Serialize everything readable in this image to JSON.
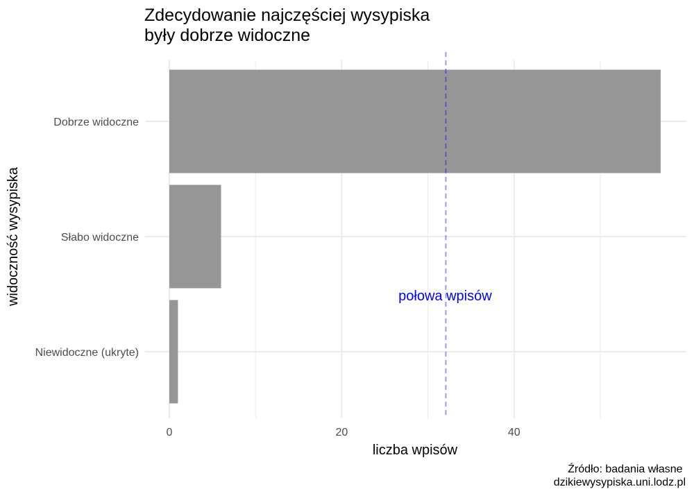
{
  "chart_data": {
    "type": "bar",
    "orientation": "horizontal",
    "title": "Zdecydowanie najczęściej wysypiska\nbyły dobrze widoczne",
    "title_lines": [
      "Zdecydowanie najczęściej wysypiska",
      "były dobrze widoczne"
    ],
    "xlabel": "liczba wpisów",
    "ylabel": "widoczność wysypiska",
    "categories": [
      "Dobrze widoczne",
      "Słabo widoczne",
      "Niewidoczne (ukryte)"
    ],
    "values": [
      57,
      6,
      1
    ],
    "xlim": [
      0,
      60
    ],
    "xticks": [
      0,
      20,
      40
    ],
    "grid": true,
    "bar_color": "#939393",
    "reference_line": {
      "value": 32,
      "label": "połowa wpisów",
      "color": "#0000ff",
      "style": "dashed"
    },
    "caption_lines": [
      "Źródło: badania własne",
      "dzikiewysypiska.uni.lodz.pl"
    ]
  }
}
